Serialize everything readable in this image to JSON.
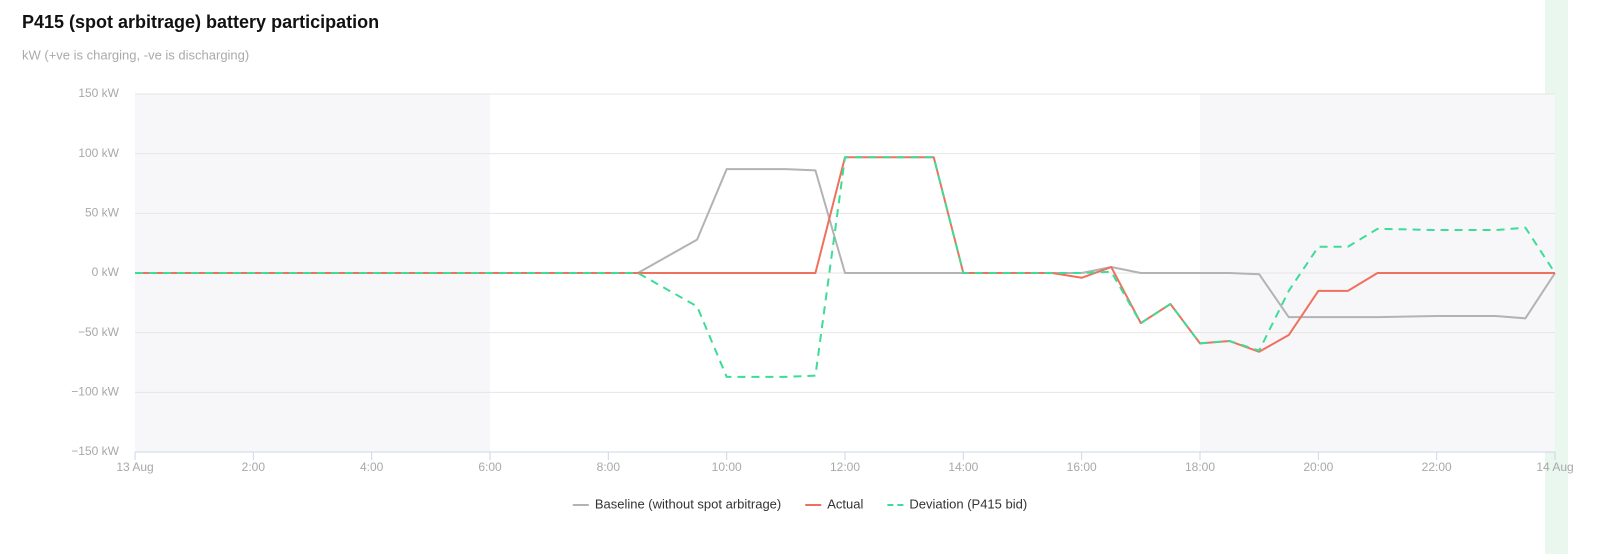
{
  "chart_data": {
    "type": "line",
    "title": "P415 (spot arbitrage) battery participation",
    "subtitle": "kW (+ve is charging, -ve is discharging)",
    "x": [
      0,
      8.5,
      9.5,
      10,
      11,
      11.5,
      12,
      13.5,
      14,
      15.5,
      16,
      16.5,
      17,
      17.5,
      18,
      18.5,
      19,
      19.5,
      20,
      20.5,
      21,
      22,
      23,
      23.5,
      24
    ],
    "series": [
      {
        "name": "Baseline (without spot arbitrage)",
        "color": "#b3b3b3",
        "dashed": false,
        "values": [
          0,
          0,
          28,
          87,
          87,
          86,
          0,
          0,
          0,
          0,
          0,
          5,
          0,
          0,
          0,
          0,
          -1,
          -37,
          -37,
          -37,
          -37,
          -36,
          -36,
          -38,
          0
        ]
      },
      {
        "name": "Actual",
        "color": "#f0705e",
        "dashed": false,
        "values": [
          0,
          0,
          0,
          0,
          0,
          0,
          97,
          97,
          0,
          0,
          -4,
          5,
          -42,
          -26,
          -59,
          -57,
          -66,
          -52,
          -15,
          -15,
          0,
          0,
          0,
          0,
          0
        ]
      },
      {
        "name": "Deviation (P415 bid)",
        "color": "#3ddc97",
        "dashed": true,
        "values": [
          0,
          0,
          -28,
          -87,
          -87,
          -86,
          97,
          97,
          0,
          0,
          0,
          1,
          -42,
          -26,
          -59,
          -57,
          -65,
          -15,
          22,
          22,
          37,
          36,
          36,
          38,
          0
        ]
      }
    ],
    "shaded_ranges": [
      [
        0,
        6
      ],
      [
        18,
        24
      ]
    ],
    "xlim": [
      0,
      24
    ],
    "xticks": [
      {
        "value": 0,
        "label": "13 Aug"
      },
      {
        "value": 2,
        "label": "2:00"
      },
      {
        "value": 4,
        "label": "4:00"
      },
      {
        "value": 6,
        "label": "6:00"
      },
      {
        "value": 8,
        "label": "8:00"
      },
      {
        "value": 10,
        "label": "10:00"
      },
      {
        "value": 12,
        "label": "12:00"
      },
      {
        "value": 14,
        "label": "14:00"
      },
      {
        "value": 16,
        "label": "16:00"
      },
      {
        "value": 18,
        "label": "18:00"
      },
      {
        "value": 20,
        "label": "20:00"
      },
      {
        "value": 22,
        "label": "22:00"
      },
      {
        "value": 24,
        "label": "14 Aug"
      }
    ],
    "ylim": [
      -150,
      150
    ],
    "yticks": [
      {
        "value": -150,
        "label": "−150 kW"
      },
      {
        "value": -100,
        "label": "−100 kW"
      },
      {
        "value": -50,
        "label": "−50 kW"
      },
      {
        "value": 0,
        "label": "0 kW"
      },
      {
        "value": 50,
        "label": "50 kW"
      },
      {
        "value": 100,
        "label": "100 kW"
      },
      {
        "value": 150,
        "label": "150 kW"
      }
    ],
    "grid": true
  }
}
